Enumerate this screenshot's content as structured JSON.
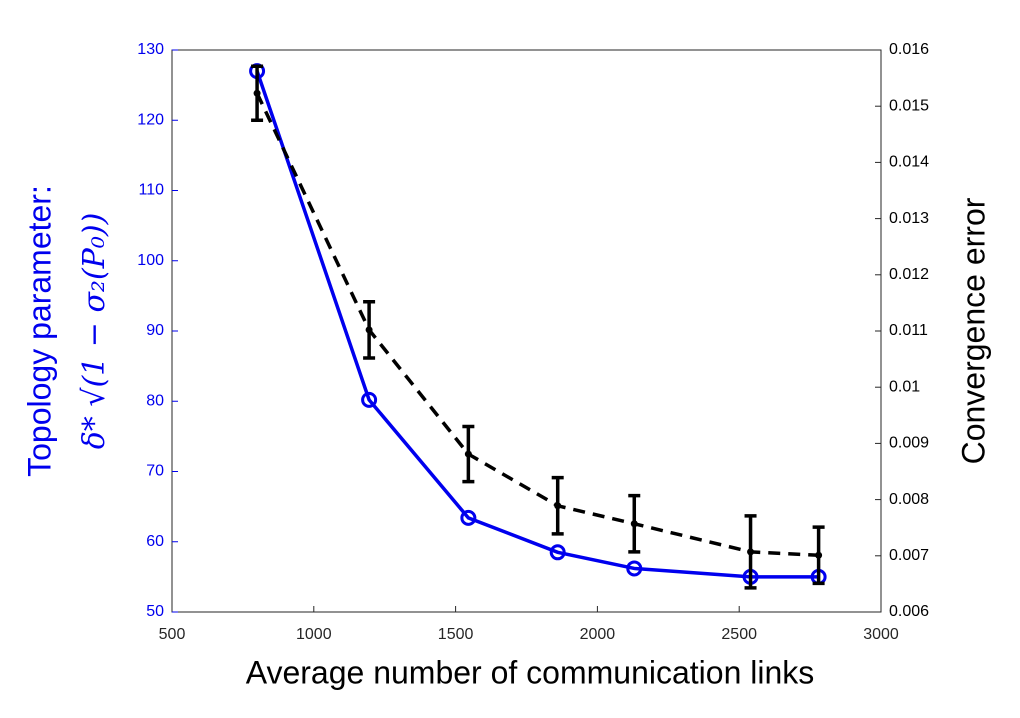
{
  "chart_data": {
    "type": "line",
    "x_label": "Average number of communication links",
    "y_label": "Topology parameter:",
    "y_label_formula": "δ* √(1 − σ₂(P₀))",
    "y2_label": "Convergence error",
    "x": [
      800,
      1195,
      1545,
      1860,
      2130,
      2540,
      2780
    ],
    "xlim": [
      500,
      3000
    ],
    "xticks": [
      500,
      1000,
      1500,
      2000,
      2500,
      3000
    ],
    "ylim": [
      50,
      130
    ],
    "yticks": [
      50,
      60,
      70,
      80,
      90,
      100,
      110,
      120,
      130
    ],
    "y2lim": [
      0.006,
      0.016
    ],
    "y2ticks": [
      0.006,
      0.007,
      0.008,
      0.009,
      0.01,
      0.011,
      0.012,
      0.013,
      0.014,
      0.015,
      0.016
    ],
    "series": [
      {
        "color": "#0000ee",
        "values": [
          127,
          80.2,
          63.4,
          58.5,
          56.2,
          55,
          55
        ]
      },
      {
        "color": "#000000",
        "axis": "y2",
        "dashed": true,
        "values": [
          0.01523,
          0.01102,
          0.00881,
          0.00789,
          0.00757,
          0.00707,
          0.00701
        ],
        "errors": [
          0.00048,
          0.0005,
          0.00049,
          0.0005,
          0.0005,
          0.00064,
          0.0005
        ]
      }
    ]
  }
}
